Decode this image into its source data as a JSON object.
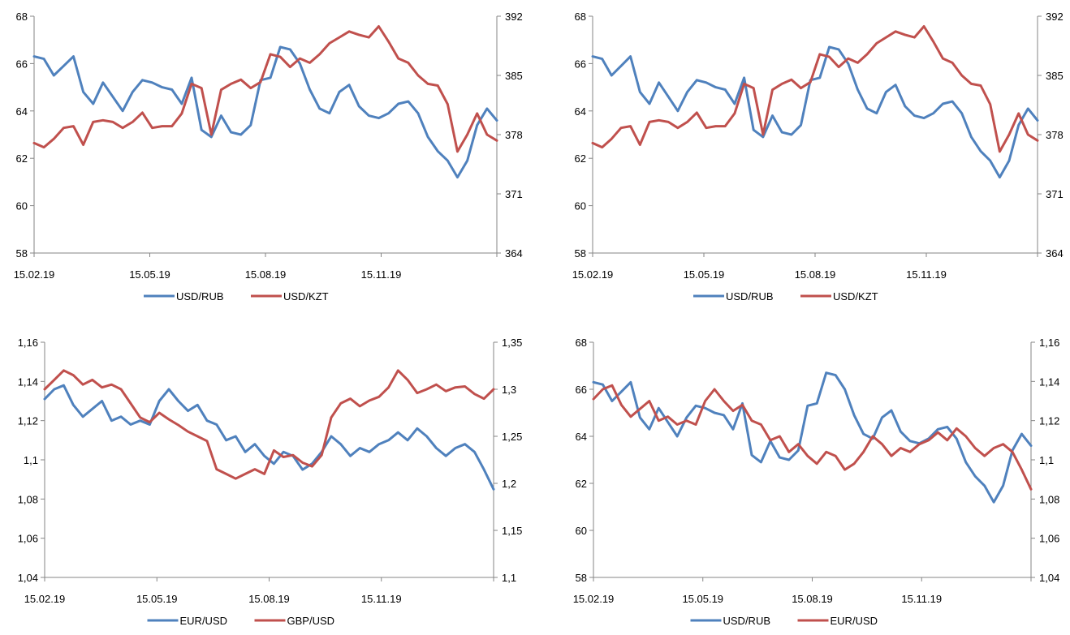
{
  "chart_data": [
    {
      "type": "line",
      "title": "",
      "x_tick_labels": [
        "15.02.19",
        "15.05.19",
        "15.08.19",
        "15.11.19"
      ],
      "x_range": [
        "15.02.19",
        "15.02.20"
      ],
      "y_left": {
        "ylim": [
          58,
          68
        ],
        "ticks": [
          "58",
          "60",
          "62",
          "64",
          "66",
          "68"
        ]
      },
      "y_right": {
        "ylim": [
          364,
          392
        ],
        "ticks": [
          "364",
          "371",
          "378",
          "385",
          "392"
        ]
      },
      "grid": false,
      "legend_position": "bottom",
      "series": [
        {
          "name": "USD/RUB",
          "axis": "left",
          "color": "#4f81bd",
          "values": [
            66.3,
            66.2,
            65.5,
            65.9,
            66.3,
            64.8,
            64.3,
            65.2,
            64.6,
            64.0,
            64.8,
            65.3,
            65.2,
            65.0,
            64.9,
            64.3,
            65.4,
            63.2,
            62.9,
            63.8,
            63.1,
            63.0,
            63.4,
            65.3,
            65.4,
            66.7,
            66.6,
            66.0,
            64.9,
            64.1,
            63.9,
            64.8,
            65.1,
            64.2,
            63.8,
            63.7,
            63.9,
            64.3,
            64.4,
            63.9,
            62.9,
            62.3,
            61.9,
            61.2,
            61.9,
            63.4,
            64.1,
            63.6
          ]
        },
        {
          "name": "USD/KZT",
          "axis": "right",
          "color": "#c0504d",
          "values": [
            377.0,
            376.5,
            377.5,
            378.8,
            379.0,
            376.8,
            379.5,
            379.7,
            379.5,
            378.8,
            379.5,
            380.6,
            378.8,
            379.0,
            379.0,
            380.5,
            384.0,
            383.5,
            378.0,
            383.3,
            384.0,
            384.5,
            383.5,
            384.2,
            387.5,
            387.2,
            386.0,
            387.0,
            386.5,
            387.5,
            388.8,
            389.5,
            390.2,
            389.8,
            389.5,
            390.8,
            389.0,
            387.0,
            386.5,
            385.0,
            384.0,
            383.8,
            381.6,
            376.0,
            378.0,
            380.5,
            378.0,
            377.3
          ]
        }
      ]
    },
    {
      "type": "line",
      "title": "",
      "x_tick_labels": [
        "15.02.19",
        "15.05.19",
        "15.08.19",
        "15.11.19"
      ],
      "x_range": [
        "15.02.19",
        "15.02.20"
      ],
      "y_left": {
        "ylim": [
          58,
          68
        ],
        "ticks": [
          "58",
          "60",
          "62",
          "64",
          "66",
          "68"
        ]
      },
      "y_right": {
        "ylim": [
          364,
          392
        ],
        "ticks": [
          "364",
          "371",
          "378",
          "385",
          "392"
        ]
      },
      "grid": false,
      "legend_position": "bottom",
      "series": [
        {
          "name": "USD/RUB",
          "axis": "left",
          "color": "#4f81bd",
          "values": [
            66.3,
            66.2,
            65.5,
            65.9,
            66.3,
            64.8,
            64.3,
            65.2,
            64.6,
            64.0,
            64.8,
            65.3,
            65.2,
            65.0,
            64.9,
            64.3,
            65.4,
            63.2,
            62.9,
            63.8,
            63.1,
            63.0,
            63.4,
            65.3,
            65.4,
            66.7,
            66.6,
            66.0,
            64.9,
            64.1,
            63.9,
            64.8,
            65.1,
            64.2,
            63.8,
            63.7,
            63.9,
            64.3,
            64.4,
            63.9,
            62.9,
            62.3,
            61.9,
            61.2,
            61.9,
            63.4,
            64.1,
            63.6
          ]
        },
        {
          "name": "USD/KZT",
          "axis": "right",
          "color": "#c0504d",
          "values": [
            377.0,
            376.5,
            377.5,
            378.8,
            379.0,
            376.8,
            379.5,
            379.7,
            379.5,
            378.8,
            379.5,
            380.6,
            378.8,
            379.0,
            379.0,
            380.5,
            384.0,
            383.5,
            378.0,
            383.3,
            384.0,
            384.5,
            383.5,
            384.2,
            387.5,
            387.2,
            386.0,
            387.0,
            386.5,
            387.5,
            388.8,
            389.5,
            390.2,
            389.8,
            389.5,
            390.8,
            389.0,
            387.0,
            386.5,
            385.0,
            384.0,
            383.8,
            381.6,
            376.0,
            378.0,
            380.5,
            378.0,
            377.3
          ]
        }
      ]
    },
    {
      "type": "line",
      "title": "",
      "x_tick_labels": [
        "15.02.19",
        "15.05.19",
        "15.08.19",
        "15.11.19"
      ],
      "x_range": [
        "15.02.19",
        "15.02.20"
      ],
      "y_left": {
        "ylim": [
          1.04,
          1.16
        ],
        "ticks": [
          "1,04",
          "1,06",
          "1,08",
          "1,1",
          "1,12",
          "1,14",
          "1,16"
        ]
      },
      "y_right": {
        "ylim": [
          1.1,
          1.35
        ],
        "ticks": [
          "1,1",
          "1,15",
          "1,2",
          "1,25",
          "1,3",
          "1,35"
        ]
      },
      "grid": false,
      "legend_position": "bottom",
      "series": [
        {
          "name": "EUR/USD",
          "axis": "left",
          "color": "#4f81bd",
          "values": [
            1.131,
            1.136,
            1.138,
            1.128,
            1.122,
            1.126,
            1.13,
            1.12,
            1.122,
            1.118,
            1.12,
            1.118,
            1.13,
            1.136,
            1.13,
            1.125,
            1.128,
            1.12,
            1.118,
            1.11,
            1.112,
            1.104,
            1.108,
            1.102,
            1.098,
            1.104,
            1.102,
            1.095,
            1.098,
            1.104,
            1.112,
            1.108,
            1.102,
            1.106,
            1.104,
            1.108,
            1.11,
            1.114,
            1.11,
            1.116,
            1.112,
            1.106,
            1.102,
            1.106,
            1.108,
            1.104,
            1.095,
            1.085
          ]
        },
        {
          "name": "GBP/USD",
          "axis": "right",
          "color": "#c0504d",
          "values": [
            1.3,
            1.31,
            1.32,
            1.315,
            1.305,
            1.31,
            1.302,
            1.305,
            1.3,
            1.285,
            1.27,
            1.265,
            1.275,
            1.268,
            1.262,
            1.255,
            1.25,
            1.245,
            1.215,
            1.21,
            1.205,
            1.21,
            1.215,
            1.21,
            1.235,
            1.228,
            1.23,
            1.222,
            1.218,
            1.23,
            1.27,
            1.285,
            1.29,
            1.282,
            1.288,
            1.292,
            1.302,
            1.32,
            1.31,
            1.296,
            1.3,
            1.305,
            1.298,
            1.302,
            1.303,
            1.295,
            1.29,
            1.3
          ]
        }
      ]
    },
    {
      "type": "line",
      "title": "",
      "x_tick_labels": [
        "15.02.19",
        "15.05.19",
        "15.08.19",
        "15.11.19"
      ],
      "x_range": [
        "15.02.19",
        "15.02.20"
      ],
      "y_left": {
        "ylim": [
          58,
          68
        ],
        "ticks": [
          "58",
          "60",
          "62",
          "64",
          "66",
          "68"
        ]
      },
      "y_right": {
        "ylim": [
          1.04,
          1.16
        ],
        "ticks": [
          "1,04",
          "1,06",
          "1,08",
          "1,1",
          "1,12",
          "1,14",
          "1,16"
        ]
      },
      "grid": false,
      "legend_position": "bottom",
      "series": [
        {
          "name": "USD/RUB",
          "axis": "left",
          "color": "#4f81bd",
          "values": [
            66.3,
            66.2,
            65.5,
            65.9,
            66.3,
            64.8,
            64.3,
            65.2,
            64.6,
            64.0,
            64.8,
            65.3,
            65.2,
            65.0,
            64.9,
            64.3,
            65.4,
            63.2,
            62.9,
            63.8,
            63.1,
            63.0,
            63.4,
            65.3,
            65.4,
            66.7,
            66.6,
            66.0,
            64.9,
            64.1,
            63.9,
            64.8,
            65.1,
            64.2,
            63.8,
            63.7,
            63.9,
            64.3,
            64.4,
            63.9,
            62.9,
            62.3,
            61.9,
            61.2,
            61.9,
            63.4,
            64.1,
            63.6
          ]
        },
        {
          "name": "EUR/USD",
          "axis": "right",
          "color": "#c0504d",
          "values": [
            1.131,
            1.136,
            1.138,
            1.128,
            1.122,
            1.126,
            1.13,
            1.12,
            1.122,
            1.118,
            1.12,
            1.118,
            1.13,
            1.136,
            1.13,
            1.125,
            1.128,
            1.12,
            1.118,
            1.11,
            1.112,
            1.104,
            1.108,
            1.102,
            1.098,
            1.104,
            1.102,
            1.095,
            1.098,
            1.104,
            1.112,
            1.108,
            1.102,
            1.106,
            1.104,
            1.108,
            1.11,
            1.114,
            1.11,
            1.116,
            1.112,
            1.106,
            1.102,
            1.106,
            1.108,
            1.104,
            1.095,
            1.085
          ]
        }
      ]
    }
  ]
}
